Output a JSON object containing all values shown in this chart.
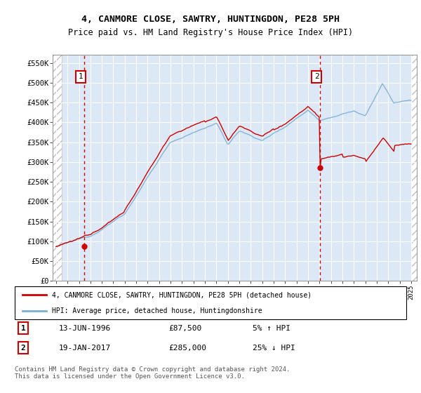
{
  "title": "4, CANMORE CLOSE, SAWTRY, HUNTINGDON, PE28 5PH",
  "subtitle": "Price paid vs. HM Land Registry's House Price Index (HPI)",
  "ylim": [
    0,
    570000
  ],
  "yticks": [
    0,
    50000,
    100000,
    150000,
    200000,
    250000,
    300000,
    350000,
    400000,
    450000,
    500000,
    550000
  ],
  "ytick_labels": [
    "£0",
    "£50K",
    "£100K",
    "£150K",
    "£200K",
    "£250K",
    "£300K",
    "£350K",
    "£400K",
    "£450K",
    "£500K",
    "£550K"
  ],
  "xlim_start": 1993.7,
  "xlim_end": 2025.5,
  "hpi_color": "#7bafd4",
  "price_color": "#cc0000",
  "vline_color": "#cc0000",
  "plot_bg_color": "#dce8f5",
  "hatch_color": "#c0c0c0",
  "sale1_year": 1996.45,
  "sale1_price": 87500,
  "sale2_year": 2017.05,
  "sale2_price": 285000,
  "legend_line1": "4, CANMORE CLOSE, SAWTRY, HUNTINGDON, PE28 5PH (detached house)",
  "legend_line2": "HPI: Average price, detached house, Huntingdonshire",
  "note1_label": "1",
  "note1_date": "13-JUN-1996",
  "note1_price": "£87,500",
  "note1_hpi": "5% ↑ HPI",
  "note2_label": "2",
  "note2_date": "19-JAN-2017",
  "note2_price": "£285,000",
  "note2_hpi": "25% ↓ HPI",
  "copyright": "Contains HM Land Registry data © Crown copyright and database right 2024.\nThis data is licensed under the Open Government Licence v3.0."
}
